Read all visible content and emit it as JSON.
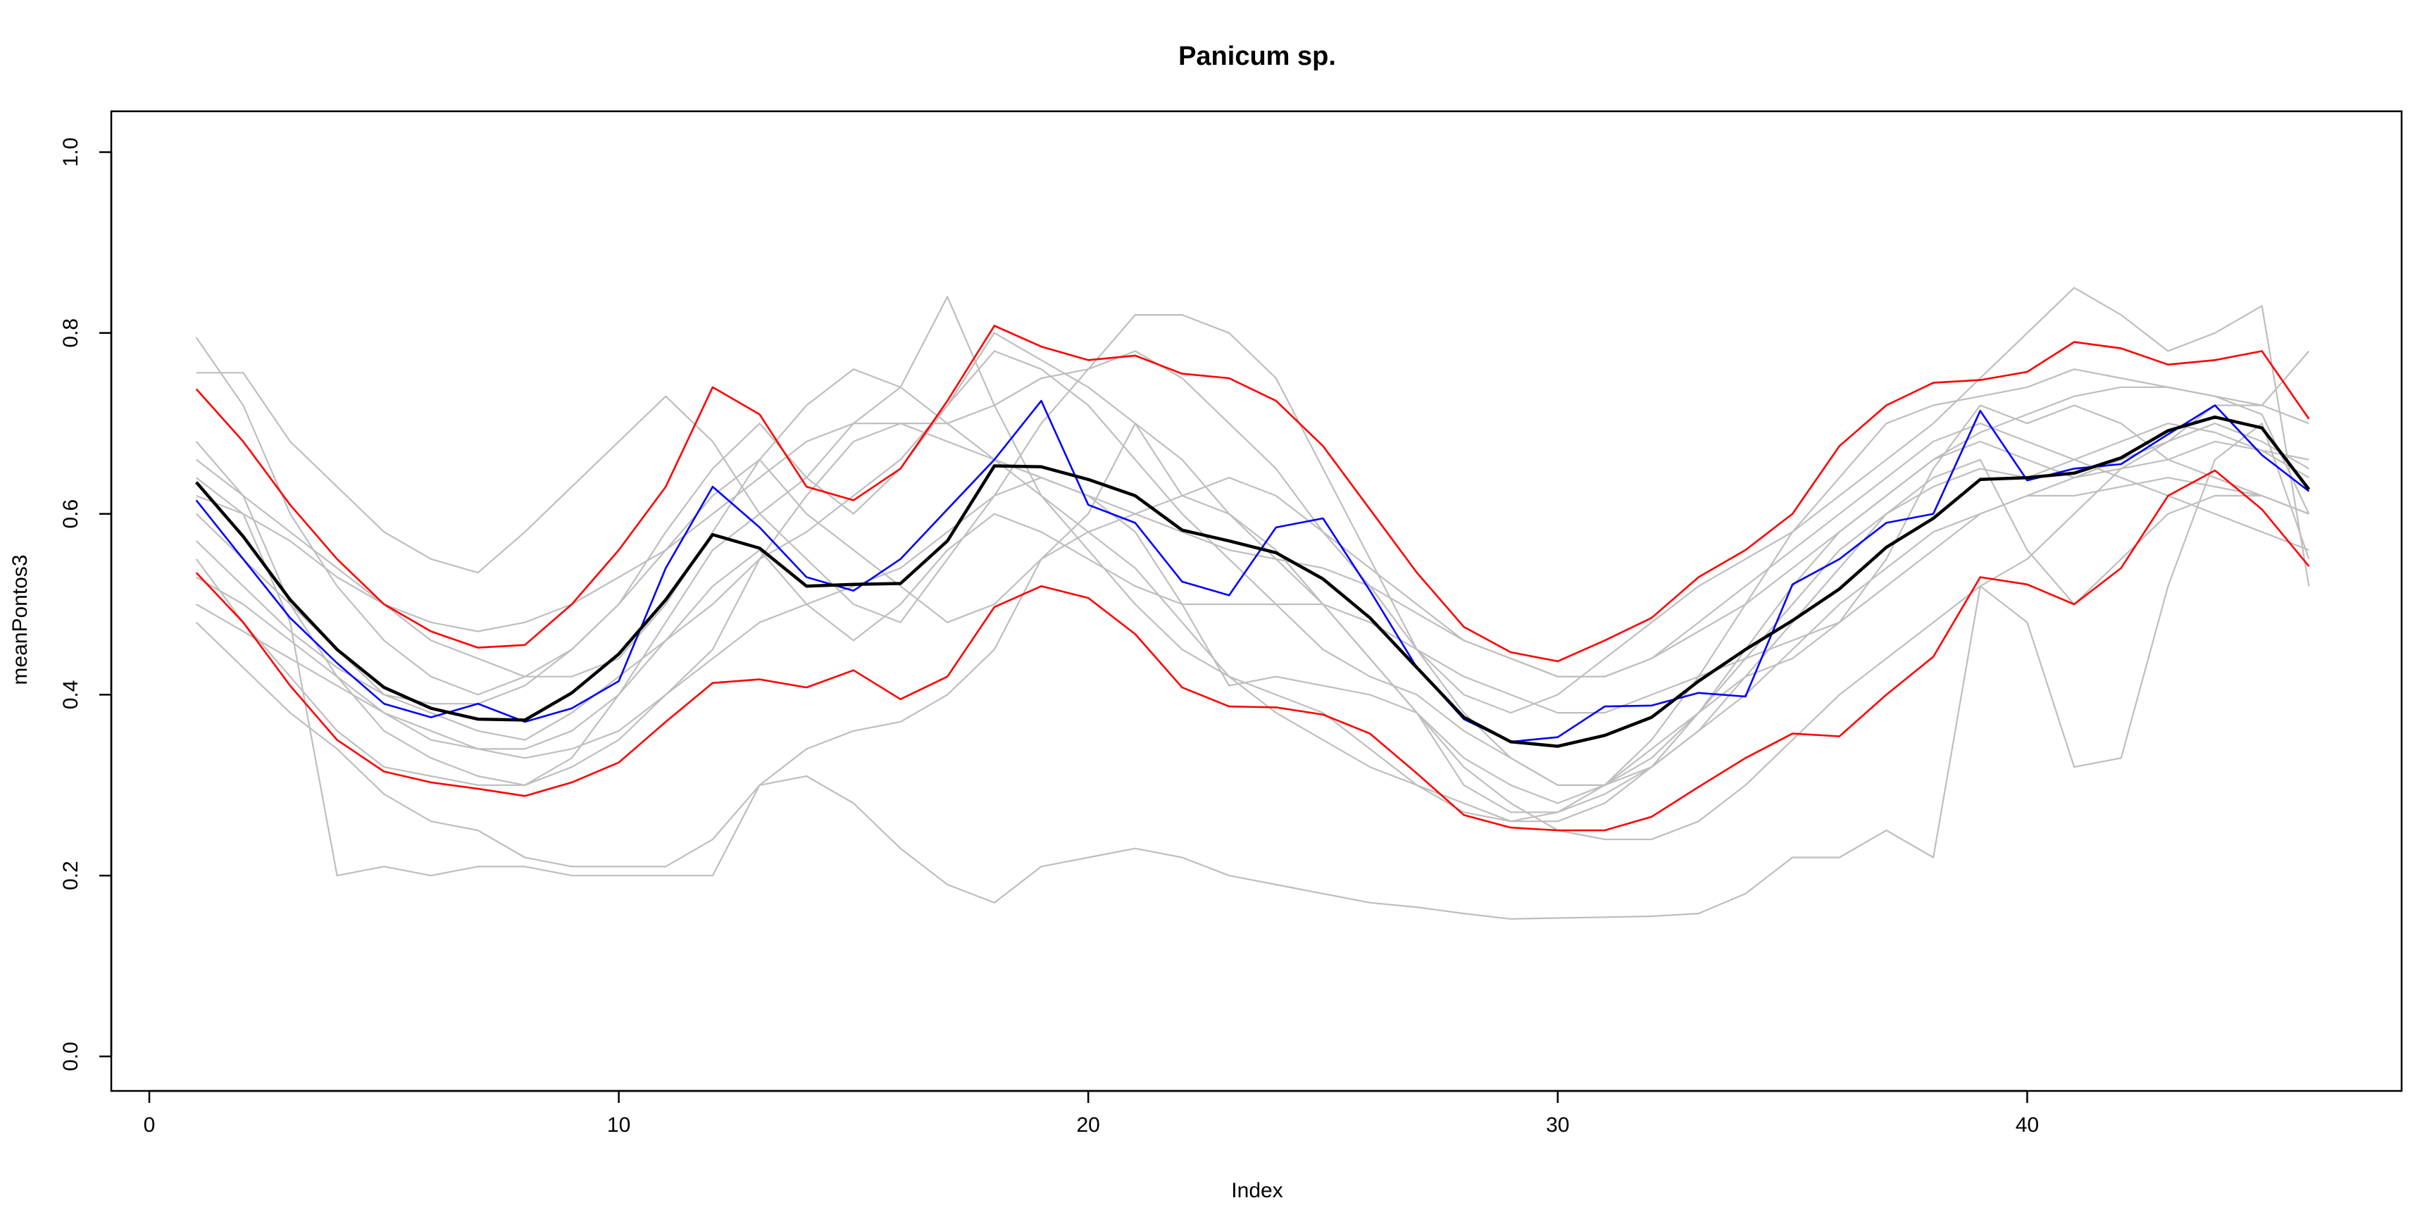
{
  "chart_data": {
    "type": "line",
    "title": "Panicum sp.",
    "xlabel": "Index",
    "ylabel": "meanPontos3",
    "xlim": [
      0,
      48
    ],
    "ylim": [
      0,
      1
    ],
    "x_ticks": [
      0,
      10,
      20,
      30,
      40
    ],
    "y_ticks": [
      0.0,
      0.2,
      0.4,
      0.6,
      0.8,
      1.0
    ],
    "x_tick_labels": [
      "0",
      "10",
      "20",
      "30",
      "40"
    ],
    "y_tick_labels": [
      "0.0",
      "0.2",
      "0.4",
      "0.6",
      "0.8",
      "1.0"
    ],
    "grid": false,
    "legend": "none",
    "x": [
      1,
      2,
      3,
      4,
      5,
      6,
      7,
      8,
      9,
      10,
      11,
      12,
      13,
      14,
      15,
      16,
      17,
      18,
      19,
      20,
      21,
      22,
      23,
      24,
      25,
      26,
      27,
      28,
      29,
      30,
      31,
      32,
      33,
      34,
      35,
      36,
      37,
      38,
      39,
      40,
      41,
      42,
      43,
      44,
      45,
      46
    ],
    "series": [
      {
        "color": "#bebebe",
        "width": 2.2,
        "values": [
          0.795,
          0.72,
          0.6,
          0.52,
          0.46,
          0.42,
          0.4,
          0.42,
          0.45,
          0.5,
          0.58,
          0.65,
          0.7,
          0.64,
          0.6,
          0.65,
          0.72,
          0.8,
          0.77,
          0.74,
          0.7,
          0.66,
          0.6,
          0.55,
          0.5,
          0.44,
          0.38,
          0.33,
          0.3,
          0.28,
          0.3,
          0.35,
          0.42,
          0.5,
          0.58,
          0.64,
          0.7,
          0.72,
          0.73,
          0.74,
          0.76,
          0.75,
          0.74,
          0.73,
          0.71,
          0.6
        ]
      },
      {
        "color": "#bebebe",
        "width": 2.2,
        "values": [
          0.756,
          0.756,
          0.68,
          0.63,
          0.58,
          0.55,
          0.535,
          0.58,
          0.63,
          0.68,
          0.73,
          0.68,
          0.6,
          0.55,
          0.5,
          0.48,
          0.55,
          0.62,
          0.7,
          0.76,
          0.82,
          0.82,
          0.8,
          0.75,
          0.65,
          0.55,
          0.45,
          0.4,
          0.38,
          0.4,
          0.44,
          0.48,
          0.52,
          0.55,
          0.58,
          0.62,
          0.66,
          0.7,
          0.75,
          0.8,
          0.85,
          0.82,
          0.78,
          0.8,
          0.83,
          0.52
        ]
      },
      {
        "color": "#bebebe",
        "width": 2.2,
        "values": [
          0.68,
          0.62,
          0.5,
          0.42,
          0.36,
          0.33,
          0.31,
          0.3,
          0.33,
          0.4,
          0.48,
          0.56,
          0.6,
          0.64,
          0.7,
          0.74,
          0.84,
          0.72,
          0.62,
          0.56,
          0.5,
          0.45,
          0.42,
          0.4,
          0.38,
          0.34,
          0.3,
          0.27,
          0.26,
          0.27,
          0.3,
          0.34,
          0.38,
          0.42,
          0.44,
          0.48,
          0.55,
          0.65,
          0.72,
          0.7,
          0.72,
          0.7,
          0.66,
          0.64,
          0.62,
          0.6
        ]
      },
      {
        "color": "#bebebe",
        "width": 2.2,
        "values": [
          0.64,
          0.6,
          0.48,
          0.2,
          0.21,
          0.2,
          0.21,
          0.21,
          0.2,
          0.2,
          0.2,
          0.2,
          0.3,
          0.31,
          0.28,
          0.23,
          0.19,
          0.17,
          0.21,
          0.22,
          0.23,
          0.22,
          0.2,
          0.19,
          0.18,
          0.17,
          0.165,
          0.158,
          0.152,
          0.153,
          0.154,
          0.155,
          0.158,
          0.18,
          0.22,
          0.22,
          0.25,
          0.22,
          0.52,
          0.55,
          0.6,
          0.65,
          0.68,
          0.72,
          0.72,
          0.78
        ]
      },
      {
        "color": "#bebebe",
        "width": 2.2,
        "values": [
          0.48,
          0.43,
          0.38,
          0.34,
          0.29,
          0.26,
          0.25,
          0.22,
          0.21,
          0.21,
          0.21,
          0.24,
          0.3,
          0.34,
          0.36,
          0.37,
          0.4,
          0.45,
          0.55,
          0.6,
          0.7,
          0.62,
          0.6,
          0.56,
          0.5,
          0.44,
          0.38,
          0.32,
          0.28,
          0.25,
          0.24,
          0.24,
          0.26,
          0.3,
          0.35,
          0.4,
          0.44,
          0.48,
          0.52,
          0.48,
          0.32,
          0.33,
          0.52,
          0.66,
          0.7,
          0.55
        ]
      },
      {
        "color": "#bebebe",
        "width": 2.2,
        "values": [
          0.55,
          0.48,
          0.42,
          0.36,
          0.32,
          0.31,
          0.3,
          0.3,
          0.32,
          0.35,
          0.4,
          0.45,
          0.55,
          0.62,
          0.68,
          0.7,
          0.7,
          0.72,
          0.75,
          0.76,
          0.78,
          0.75,
          0.7,
          0.65,
          0.58,
          0.52,
          0.45,
          0.38,
          0.33,
          0.3,
          0.3,
          0.32,
          0.38,
          0.45,
          0.52,
          0.58,
          0.62,
          0.66,
          0.68,
          0.66,
          0.64,
          0.65,
          0.66,
          0.68,
          0.67,
          0.66
        ]
      },
      {
        "color": "#bebebe",
        "width": 2.2,
        "values": [
          0.6,
          0.55,
          0.5,
          0.45,
          0.4,
          0.38,
          0.36,
          0.35,
          0.38,
          0.42,
          0.46,
          0.5,
          0.55,
          0.58,
          0.62,
          0.66,
          0.72,
          0.78,
          0.76,
          0.72,
          0.66,
          0.6,
          0.55,
          0.5,
          0.45,
          0.42,
          0.4,
          0.36,
          0.33,
          0.3,
          0.3,
          0.33,
          0.38,
          0.44,
          0.5,
          0.56,
          0.6,
          0.63,
          0.65,
          0.64,
          0.66,
          0.68,
          0.7,
          0.69,
          0.67,
          0.64
        ]
      },
      {
        "color": "#bebebe",
        "width": 2.2,
        "values": [
          0.5,
          0.47,
          0.44,
          0.41,
          0.38,
          0.36,
          0.34,
          0.33,
          0.34,
          0.36,
          0.4,
          0.44,
          0.48,
          0.5,
          0.52,
          0.54,
          0.58,
          0.62,
          0.64,
          0.62,
          0.58,
          0.5,
          0.41,
          0.42,
          0.41,
          0.4,
          0.38,
          0.3,
          0.27,
          0.27,
          0.29,
          0.32,
          0.36,
          0.4,
          0.45,
          0.5,
          0.54,
          0.58,
          0.6,
          0.62,
          0.62,
          0.63,
          0.64,
          0.63,
          0.62,
          0.6
        ]
      },
      {
        "color": "#bebebe",
        "width": 2.2,
        "values": [
          0.57,
          0.52,
          0.47,
          0.43,
          0.4,
          0.39,
          0.39,
          0.41,
          0.45,
          0.5,
          0.56,
          0.62,
          0.66,
          0.6,
          0.56,
          0.52,
          0.48,
          0.5,
          0.55,
          0.58,
          0.6,
          0.62,
          0.64,
          0.62,
          0.58,
          0.54,
          0.5,
          0.46,
          0.44,
          0.42,
          0.42,
          0.44,
          0.48,
          0.52,
          0.56,
          0.6,
          0.64,
          0.68,
          0.7,
          0.68,
          0.66,
          0.64,
          0.62,
          0.6,
          0.58,
          0.56
        ]
      },
      {
        "color": "#bebebe",
        "width": 2.2,
        "values": [
          0.53,
          0.5,
          0.46,
          0.42,
          0.38,
          0.35,
          0.34,
          0.34,
          0.36,
          0.4,
          0.46,
          0.52,
          0.56,
          0.5,
          0.46,
          0.5,
          0.56,
          0.6,
          0.58,
          0.55,
          0.52,
          0.5,
          0.5,
          0.5,
          0.5,
          0.48,
          0.45,
          0.42,
          0.4,
          0.38,
          0.38,
          0.4,
          0.42,
          0.44,
          0.46,
          0.48,
          0.52,
          0.56,
          0.6,
          0.62,
          0.64,
          0.66,
          0.68,
          0.7,
          0.68,
          0.65
        ]
      },
      {
        "color": "#bebebe",
        "width": 2.2,
        "values": [
          0.66,
          0.62,
          0.58,
          0.54,
          0.5,
          0.46,
          0.44,
          0.42,
          0.42,
          0.44,
          0.5,
          0.58,
          0.66,
          0.72,
          0.76,
          0.74,
          0.7,
          0.66,
          0.62,
          0.58,
          0.54,
          0.48,
          0.42,
          0.38,
          0.35,
          0.32,
          0.3,
          0.28,
          0.26,
          0.26,
          0.28,
          0.32,
          0.36,
          0.42,
          0.48,
          0.54,
          0.6,
          0.64,
          0.66,
          0.56,
          0.5,
          0.55,
          0.6,
          0.62,
          0.62,
          0.6
        ]
      },
      {
        "color": "#bebebe",
        "width": 2.2,
        "values": [
          0.62,
          0.6,
          0.57,
          0.53,
          0.5,
          0.48,
          0.47,
          0.48,
          0.5,
          0.53,
          0.56,
          0.6,
          0.64,
          0.68,
          0.7,
          0.7,
          0.68,
          0.66,
          0.64,
          0.62,
          0.6,
          0.58,
          0.56,
          0.55,
          0.54,
          0.52,
          0.49,
          0.46,
          0.44,
          0.42,
          0.42,
          0.44,
          0.47,
          0.5,
          0.54,
          0.58,
          0.62,
          0.66,
          0.69,
          0.71,
          0.73,
          0.74,
          0.74,
          0.73,
          0.72,
          0.7
        ]
      },
      {
        "color": "#ff0000",
        "width": 2.6,
        "values": [
          0.738,
          0.68,
          0.61,
          0.55,
          0.5,
          0.47,
          0.452,
          0.455,
          0.5,
          0.56,
          0.63,
          0.74,
          0.71,
          0.63,
          0.615,
          0.65,
          0.725,
          0.808,
          0.785,
          0.77,
          0.775,
          0.755,
          0.75,
          0.725,
          0.675,
          0.605,
          0.535,
          0.475,
          0.447,
          0.437,
          0.46,
          0.485,
          0.53,
          0.56,
          0.6,
          0.675,
          0.72,
          0.745,
          0.748,
          0.757,
          0.79,
          0.783,
          0.765,
          0.77,
          0.78,
          0.705
        ]
      },
      {
        "color": "#ff0000",
        "width": 2.6,
        "values": [
          0.535,
          0.48,
          0.41,
          0.35,
          0.315,
          0.303,
          0.296,
          0.288,
          0.303,
          0.325,
          0.37,
          0.413,
          0.417,
          0.408,
          0.427,
          0.395,
          0.42,
          0.497,
          0.52,
          0.507,
          0.467,
          0.408,
          0.387,
          0.386,
          0.378,
          0.357,
          0.313,
          0.267,
          0.253,
          0.25,
          0.25,
          0.265,
          0.298,
          0.33,
          0.357,
          0.354,
          0.4,
          0.442,
          0.53,
          0.522,
          0.5,
          0.54,
          0.62,
          0.648,
          0.605,
          0.542
        ]
      },
      {
        "color": "#0000ff",
        "width": 2.6,
        "values": [
          0.615,
          0.55,
          0.485,
          0.435,
          0.39,
          0.375,
          0.39,
          0.37,
          0.385,
          0.415,
          0.54,
          0.63,
          0.585,
          0.53,
          0.515,
          0.55,
          0.605,
          0.66,
          0.725,
          0.61,
          0.59,
          0.525,
          0.51,
          0.585,
          0.595,
          0.515,
          0.43,
          0.373,
          0.348,
          0.353,
          0.387,
          0.388,
          0.402,
          0.398,
          0.522,
          0.55,
          0.59,
          0.6,
          0.714,
          0.637,
          0.65,
          0.655,
          0.688,
          0.72,
          0.665,
          0.625
        ]
      },
      {
        "color": "#000000",
        "width": 4.5,
        "values": [
          0.635,
          0.575,
          0.505,
          0.45,
          0.408,
          0.385,
          0.373,
          0.372,
          0.402,
          0.445,
          0.505,
          0.577,
          0.562,
          0.52,
          0.522,
          0.523,
          0.57,
          0.653,
          0.652,
          0.638,
          0.62,
          0.582,
          0.57,
          0.557,
          0.528,
          0.485,
          0.43,
          0.375,
          0.348,
          0.343,
          0.355,
          0.375,
          0.415,
          0.45,
          0.482,
          0.517,
          0.563,
          0.595,
          0.638,
          0.64,
          0.645,
          0.662,
          0.692,
          0.707,
          0.695,
          0.627
        ]
      }
    ]
  }
}
